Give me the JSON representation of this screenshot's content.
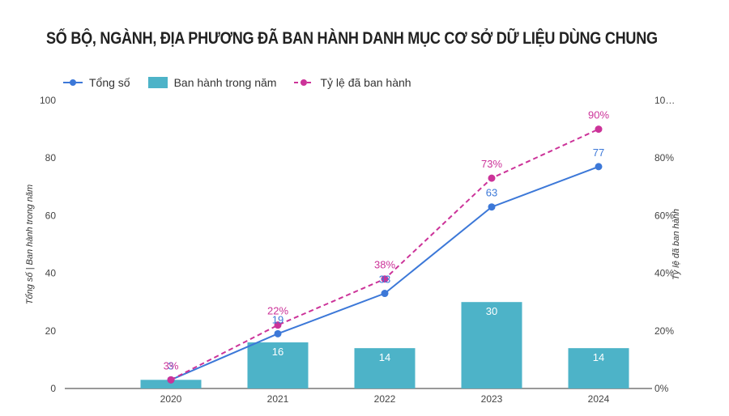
{
  "chart_data": {
    "type": "bar+line",
    "title": "SỐ BỘ, NGÀNH, ĐỊA PHƯƠNG ĐÃ BAN HÀNH DANH MỤC CƠ SỞ DỮ LIỆU DÙNG CHUNG",
    "categories": [
      "2020",
      "2021",
      "2022",
      "2023",
      "2024"
    ],
    "series": [
      {
        "name": "Tổng số",
        "kind": "line",
        "axis": "left",
        "color": "#3c78d8",
        "values": [
          3,
          19,
          33,
          63,
          77
        ],
        "labels": [
          "3",
          "19",
          "33",
          "63",
          "77"
        ]
      },
      {
        "name": "Ban hành trong năm",
        "kind": "bar",
        "axis": "left",
        "color": "#4db3c8",
        "values": [
          3,
          16,
          14,
          30,
          14
        ],
        "labels": [
          "",
          "16",
          "14",
          "30",
          "14"
        ]
      },
      {
        "name": "Tỷ lệ đã ban hành",
        "kind": "line",
        "dashed": true,
        "axis": "right",
        "color": "#cc3399",
        "values": [
          3,
          22,
          38,
          73,
          90
        ],
        "labels": [
          "3%",
          "22%",
          "38%",
          "73%",
          "90%"
        ]
      }
    ],
    "y_left": {
      "label": "Tổng số | Ban hành trong năm",
      "range": [
        0,
        100
      ],
      "ticks": [
        "0",
        "20",
        "40",
        "60",
        "80",
        "100"
      ]
    },
    "y_right": {
      "label": "Tỷ lệ đã ban hành",
      "range": [
        0,
        100
      ],
      "ticks": [
        "0%",
        "20%",
        "40%",
        "60%",
        "80%",
        "10…"
      ]
    },
    "legend_position": "top-left",
    "grid": false
  }
}
